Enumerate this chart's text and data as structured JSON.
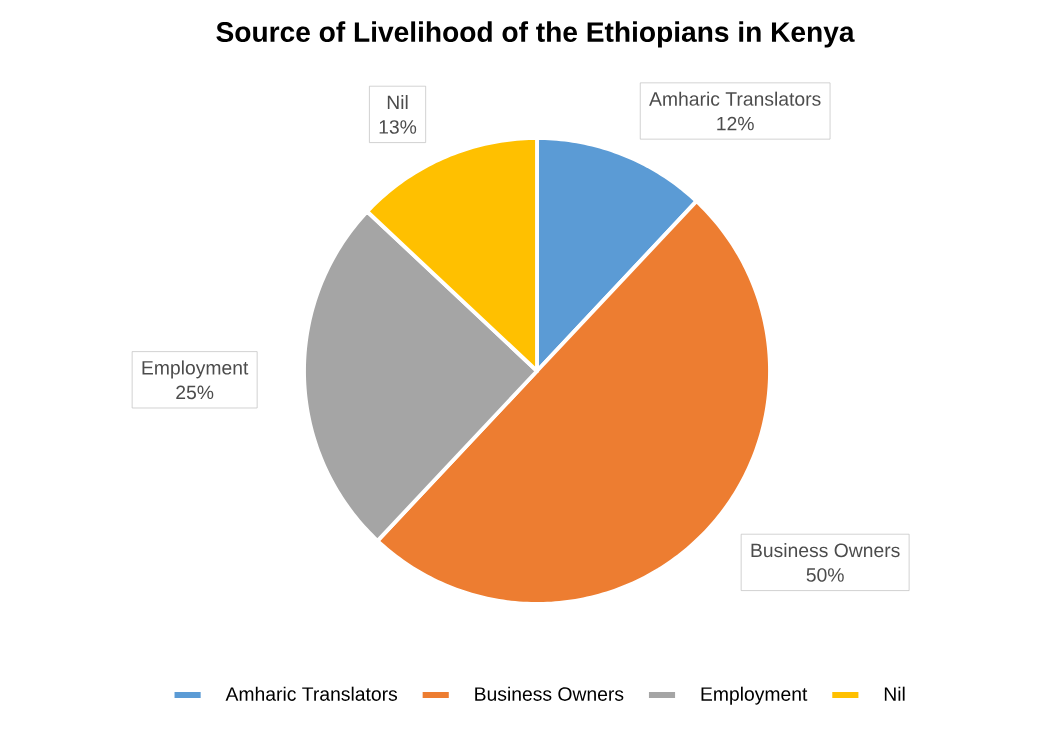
{
  "chart_data": {
    "type": "pie",
    "title": "Source of Livelihood of the Ethiopians in Kenya",
    "categories": [
      "Amharic Translators",
      "Business Owners",
      "Employment",
      "Nil"
    ],
    "values": [
      12,
      50,
      25,
      13
    ],
    "value_labels": [
      "12%",
      "50%",
      "25%",
      "13%"
    ],
    "colors": [
      "#5b9bd5",
      "#ed7d31",
      "#a5a5a5",
      "#ffc000"
    ],
    "legend": "bottom"
  }
}
